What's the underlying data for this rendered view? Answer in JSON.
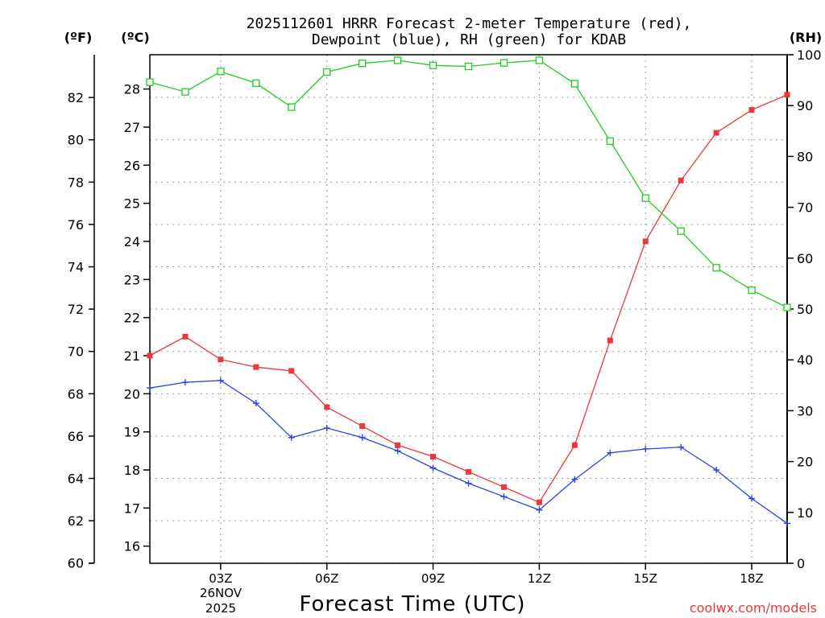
{
  "chart_data": {
    "type": "line",
    "title_line1": "2025112601 HRRR Forecast 2-meter Temperature (red),",
    "title_line2": "Dewpoint (blue), RH (green) for KDAB",
    "xlabel": "Forecast Time (UTC)",
    "date_line1": "26NOV",
    "date_line2": "2025",
    "credit": "coolwx.com/models",
    "left_axis_unit": "(ºF)",
    "middle_axis_unit": "(ºC)",
    "right_axis_unit": "(RH)",
    "fahrenheit_ticks": [
      "60",
      "62",
      "64",
      "66",
      "68",
      "70",
      "72",
      "74",
      "76",
      "78",
      "80",
      "82"
    ],
    "celsius_ticks": [
      "16",
      "17",
      "18",
      "19",
      "20",
      "21",
      "22",
      "23",
      "24",
      "25",
      "26",
      "27",
      "28"
    ],
    "rh_ticks": [
      "0",
      "10",
      "20",
      "30",
      "40",
      "50",
      "60",
      "70",
      "80",
      "90",
      "100"
    ],
    "x_ticks": [
      {
        "hour": 3,
        "label": "03Z"
      },
      {
        "hour": 6,
        "label": "06Z"
      },
      {
        "hour": 9,
        "label": "09Z"
      },
      {
        "hour": 12,
        "label": "12Z"
      },
      {
        "hour": 15,
        "label": "15Z"
      },
      {
        "hour": 18,
        "label": "18Z"
      }
    ],
    "hours": [
      1,
      2,
      3,
      4,
      5,
      6,
      7,
      8,
      9,
      10,
      11,
      12,
      13,
      14,
      15,
      16,
      17,
      18,
      19
    ],
    "series": [
      {
        "name": "Temperature",
        "color": "#e8383b",
        "unit": "C",
        "marker": "filled-square",
        "values": [
          21.0,
          21.5,
          20.9,
          20.7,
          20.6,
          19.65,
          19.15,
          18.65,
          18.35,
          17.95,
          17.55,
          17.15,
          18.65,
          21.4,
          24.0,
          25.6,
          26.85,
          27.45,
          27.85
        ]
      },
      {
        "name": "Dewpoint",
        "color": "#2a45e0",
        "unit": "C",
        "marker": "plus",
        "values": [
          20.15,
          20.3,
          20.35,
          19.75,
          18.85,
          19.1,
          18.85,
          18.5,
          18.05,
          17.65,
          17.3,
          16.95,
          17.75,
          18.45,
          18.55,
          18.6,
          18.0,
          17.25,
          16.6
        ]
      },
      {
        "name": "RH",
        "color": "#22cc22",
        "unit": "%",
        "marker": "open-square",
        "values": [
          94.6,
          92.7,
          96.7,
          94.4,
          89.7,
          96.6,
          98.3,
          98.9,
          97.9,
          97.7,
          98.4,
          98.9,
          94.3,
          83.0,
          71.8,
          65.3,
          58.1,
          53.7,
          50.3
        ]
      }
    ],
    "x_range_hours": [
      1,
      19
    ],
    "celsius_range": [
      15.55,
      28.9
    ],
    "rh_range": [
      0,
      100
    ],
    "grid": true
  }
}
